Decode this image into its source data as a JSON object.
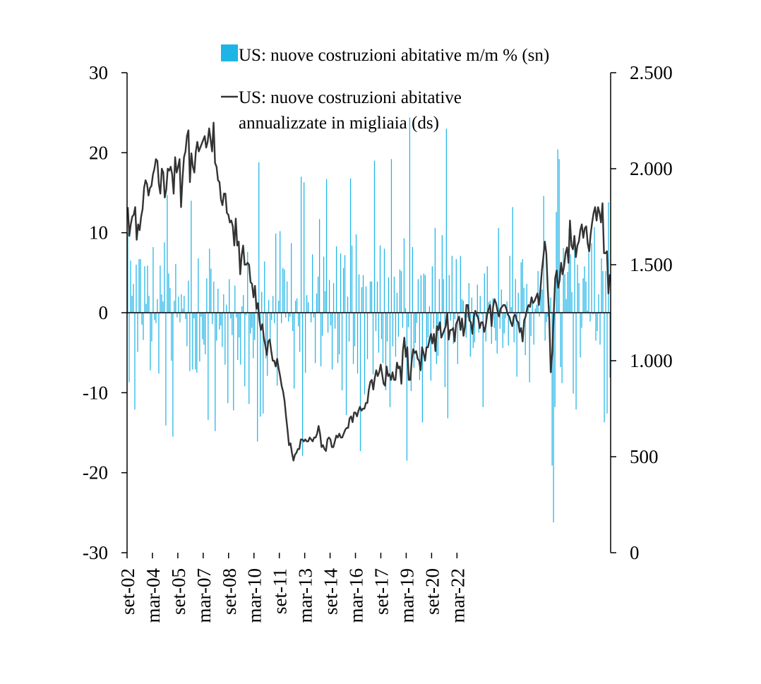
{
  "chart_data": {
    "type": "bar+line",
    "legend": {
      "placement": "top-right",
      "bar_label": "US: nuove costruzioni abitative m/m % (sn)",
      "line_label_1": "US: nuove costruzioni abitative",
      "line_label_2": "annualizzate in migliaia (ds)"
    },
    "colors": {
      "bars": "#1EB4E6",
      "line": "#333333",
      "axis": "#000000"
    },
    "left_axis": {
      "min": -30,
      "max": 30,
      "ticks": [
        30,
        20,
        10,
        0,
        -10,
        -20,
        -30
      ],
      "tick_labels": [
        "30",
        "20",
        "10",
        "0",
        "-10",
        "-20",
        "-30"
      ]
    },
    "right_axis": {
      "min": 0,
      "max": 2500,
      "ticks": [
        2500,
        2000,
        1500,
        1000,
        500,
        0
      ],
      "tick_labels": [
        "2.500",
        "2.000",
        "1.500",
        "1.000",
        "500",
        "0"
      ]
    },
    "x_axis": {
      "start": "2002-09",
      "end": "2022-09",
      "tick_labels": [
        "set-02",
        "mar-04",
        "set-05",
        "mar-07",
        "set-08",
        "mar-10",
        "set-11",
        "mar-13",
        "set-14",
        "mar-16",
        "set-17",
        "mar-19",
        "set-20",
        "mar-22"
      ]
    },
    "series": [
      {
        "name": "US: nuove costruzioni abitative m/m % (sn)",
        "type": "bar",
        "axis": "left",
        "values": [
          10,
          -8.7,
          6.5,
          2.1,
          3.6,
          -12.1,
          6,
          -4.9,
          6.7,
          6.7,
          -1.5,
          -3.4,
          5.8,
          1.1,
          5.9,
          2.1,
          -7.2,
          -3.6,
          8.2,
          -0.9,
          -1.3,
          1.7,
          -7.6,
          5.9,
          2.3,
          1.4,
          8.8,
          -14.1,
          14.7,
          4.9,
          3.1,
          -6,
          -15.5,
          1.5,
          6.1,
          -0.6,
          2,
          -1.2,
          2.3,
          0.5,
          2.1,
          -0.8,
          -4.2,
          4,
          -7.3,
          14,
          -7.1,
          -0.7,
          -7.1,
          -7.5,
          6.8,
          -6.1,
          -0.5,
          -3.3,
          -4,
          -5.2,
          4.3,
          -13.4,
          8,
          5.5,
          -1.4,
          3.9,
          -14.8,
          -3.5,
          3,
          -2.1,
          -1.6,
          -4.3,
          2.3,
          -6.5,
          1,
          -11.3,
          4.2,
          -0.7,
          -2.8,
          -12.2,
          3.4,
          -0.6,
          -5.9,
          -3.1,
          -6.5,
          0.8,
          2.2,
          -9.2,
          -0.3,
          7.6,
          -11.4,
          -2.6,
          -1.9,
          -5.7,
          -3.4,
          1.5,
          -16.1,
          18.8,
          -13,
          2.6,
          -12.6,
          6.4,
          -5.7,
          -7.9,
          1.6,
          -3.5,
          -0.9,
          2.1,
          -1.3,
          9.9,
          -9.1,
          1.5,
          10.2,
          -1.3,
          5.6,
          5.4,
          -0.6,
          3.9,
          -1.1,
          -0.5,
          8.7,
          -2.3,
          -9.5,
          1.5,
          1.8,
          -1.7,
          -4.9,
          17,
          -17.9,
          16.3,
          -7.5,
          2.2,
          1.3,
          0,
          -1.2,
          7.3,
          -0.6,
          -6.3,
          2.4,
          4.5,
          11.7,
          -6.7,
          -2.9,
          7,
          2.7,
          16.7,
          -2.5,
          4.1,
          -1.6,
          -7.1,
          3.7,
          -2,
          8.3,
          -6.3,
          -5.2,
          7.4,
          -9.7,
          5.6,
          7.2,
          -12.8,
          2,
          -3.6,
          16.8,
          8.4,
          -6.4,
          -4.2,
          9.8,
          -7.6,
          4.8,
          -17.3,
          3.2,
          4.7,
          -10.2,
          3.3,
          -5.8,
          -0.1,
          3.9,
          3.9,
          -7.7,
          19,
          -2.3,
          3.9,
          -5,
          8.4,
          -3.3,
          -6.3,
          8,
          -9.7,
          -3.6,
          4.4,
          -11.8,
          19.2,
          -4.2,
          4.5,
          -5.5,
          2.5,
          -3,
          5.4,
          5.2,
          -1.9,
          9.3,
          0.6,
          -18.5,
          -1.8,
          24.4,
          -9.8,
          8.2,
          -6.9,
          -3.8,
          -1.3,
          4.2,
          -8.4,
          4.7,
          -13.7,
          4.9,
          4.7,
          -4.4,
          -3.1,
          0.8,
          -8.5,
          5.8,
          -2,
          10.6,
          -6.4,
          -5.4,
          4.2,
          -2.4,
          9.7,
          4.2,
          -9.3,
          23,
          -13.2,
          4.7,
          -1,
          7.1,
          -3.9,
          -0.8,
          6.7,
          -6.4,
          -0.2,
          7.1,
          1.7,
          1.5,
          -0.6,
          -3.1,
          -0.6,
          3.7,
          -5.5,
          1.9,
          -4.4,
          -3.7,
          -0.5,
          3.5,
          -2.5,
          2.1,
          -0.2,
          -11.8,
          4.9,
          -3.6,
          5.8,
          1.3,
          1.5,
          -3.9,
          1.8,
          -1.9,
          -3.5,
          -5.1,
          10.6,
          -2,
          2.9,
          -4.4,
          -2.6,
          -0.7,
          1.4,
          -4.1,
          7.1,
          0.7,
          13.2,
          -3.7,
          4.2,
          -8,
          2.5,
          -2.6,
          6.3,
          6.7,
          3.1,
          -5.3,
          3.6,
          0.8,
          -8.7,
          -2.9,
          1.9,
          -4,
          0.5,
          1,
          5.2,
          -0.5,
          3,
          2.9,
          14.6,
          -3.5,
          -1.2,
          -0.5,
          0.9,
          1.9,
          -19.1,
          -26.2,
          -11.8,
          12.6,
          20.4,
          19.2,
          -6.8,
          -8.8,
          8.1,
          4.8,
          1.7,
          5.1,
          10.5,
          7.3,
          2.6,
          -10.1,
          8.2,
          -12.1,
          6,
          3.7,
          -5.6,
          -1.9,
          4.3,
          5.8,
          3.9,
          0.3,
          8.6,
          -1.1,
          8.7,
          -0.2,
          10.7,
          -3.5,
          -2.3,
          2.3,
          -4,
          6.8,
          5.2,
          -13.7,
          5.2,
          -12.6,
          13.8,
          -8.1
        ]
      },
      {
        "name": "US: nuove costruzioni abitative annualizzate in migliaia (ds)",
        "type": "line",
        "axis": "right",
        "values": [
          1800,
          1650,
          1710,
          1750,
          1760,
          1800,
          1630,
          1710,
          1680,
          1750,
          1790,
          1900,
          1940,
          1920,
          1860,
          1900,
          1910,
          1970,
          2000,
          2050,
          2040,
          1920,
          1870,
          2000,
          1980,
          1850,
          1890,
          2000,
          1990,
          2010,
          1970,
          1870,
          2060,
          1980,
          2010,
          2050,
          1800,
          1950,
          2060,
          2090,
          2170,
          2200,
          1930,
          2080,
          2010,
          1980,
          2090,
          2140,
          2090,
          2110,
          2130,
          2150,
          2170,
          2110,
          2140,
          2210,
          2150,
          2090,
          2240,
          2030,
          2010,
          1940,
          1930,
          1840,
          1810,
          1870,
          1870,
          1770,
          1760,
          1720,
          1730,
          1700,
          1600,
          1740,
          1600,
          1620,
          1450,
          1550,
          1600,
          1500,
          1500,
          1510,
          1500,
          1410,
          1400,
          1330,
          1390,
          1270,
          1300,
          1210,
          1160,
          1190,
          1120,
          1080,
          1030,
          1100,
          1110,
          1050,
          1000,
          1000,
          970,
          1010,
          960,
          920,
          870,
          840,
          790,
          710,
          640,
          560,
          570,
          520,
          480,
          510,
          520,
          540,
          540,
          590,
          590,
          580,
          590,
          580,
          580,
          600,
          590,
          580,
          600,
          600,
          620,
          660,
          620,
          550,
          560,
          540,
          530,
          590,
          600,
          590,
          550,
          550,
          580,
          610,
          600,
          620,
          600,
          600,
          620,
          640,
          650,
          650,
          700,
          710,
          680,
          730,
          730,
          710,
          740,
          760,
          740,
          750,
          750,
          780,
          780,
          850,
          890,
          900,
          850,
          910,
          950,
          920,
          940,
          980,
          930,
          880,
          870,
          970,
          920,
          930,
          900,
          940,
          900,
          900,
          990,
          960,
          970,
          880,
          1050,
          1120,
          1020,
          1070,
          900,
          900,
          1000,
          1060,
          1040,
          1050,
          1010,
          1000,
          950,
          1070,
          1040,
          1000,
          1070,
          1070,
          1110,
          1140,
          1090,
          1140,
          1050,
          1180,
          1160,
          1200,
          1120,
          1140,
          1160,
          1180,
          1250,
          1110,
          1160,
          1160,
          1170,
          1100,
          1190,
          1210,
          1230,
          1160,
          1220,
          1130,
          1180,
          1290,
          1290,
          1210,
          1200,
          1140,
          1230,
          1260,
          1240,
          1220,
          1170,
          1200,
          1200,
          1150,
          1180,
          1240,
          1270,
          1290,
          1180,
          1280,
          1320,
          1300,
          1260,
          1230,
          1270,
          1280,
          1290,
          1290,
          1270,
          1240,
          1230,
          1200,
          1180,
          1230,
          1240,
          1210,
          1200,
          1150,
          1170,
          1100,
          1210,
          1230,
          1270,
          1290,
          1280,
          1330,
          1300,
          1310,
          1330,
          1350,
          1290,
          1370,
          1470,
          1540,
          1620,
          1560,
          1370,
          1220,
          940,
          1040,
          1240,
          1430,
          1470,
          1380,
          1420,
          1510,
          1450,
          1490,
          1560,
          1590,
          1510,
          1730,
          1600,
          1580,
          1650,
          1540,
          1600,
          1620,
          1680,
          1710,
          1640,
          1690,
          1700,
          1610,
          1570,
          1660,
          1720,
          1770,
          1800,
          1730,
          1800,
          1770,
          1720,
          1820,
          1560,
          1560,
          1570,
          1350,
          1450
        ]
      }
    ]
  }
}
